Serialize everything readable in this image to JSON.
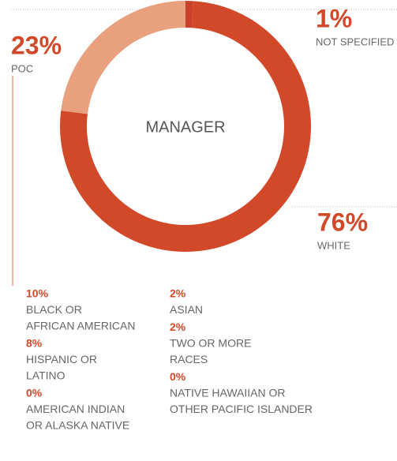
{
  "chart_data": {
    "type": "donut",
    "center_label": "MANAGER",
    "categories": [
      "NOT SPECIFIED",
      "WHITE",
      "POC"
    ],
    "values": [
      1,
      76,
      23
    ],
    "value_labels": [
      "1%",
      "76%",
      "23%"
    ],
    "colors": [
      "#c8432a",
      "#d2492a",
      "#e8a07e"
    ],
    "breakdown": {
      "categories": [
        [
          "BLACK OR",
          "AFRICAN AMERICAN"
        ],
        [
          "HISPANIC OR",
          "LATINO"
        ],
        [
          "AMERICAN INDIAN",
          "OR ALASKA NATIVE"
        ],
        [
          "ASIAN"
        ],
        [
          "TWO OR MORE",
          "RACES"
        ],
        [
          "NATIVE HAWAIIAN OR",
          "OTHER PACIFIC ISLANDER"
        ]
      ],
      "values": [
        10,
        8,
        0,
        2,
        2,
        0
      ],
      "value_labels": [
        "10%",
        "8%",
        "0%",
        "2%",
        "2%",
        "0%"
      ]
    }
  }
}
